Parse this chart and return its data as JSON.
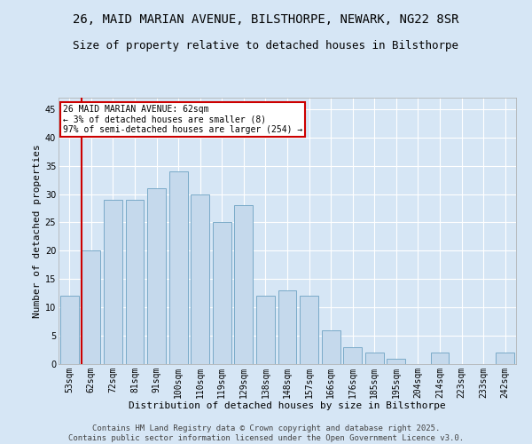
{
  "title1": "26, MAID MARIAN AVENUE, BILSTHORPE, NEWARK, NG22 8SR",
  "title2": "Size of property relative to detached houses in Bilsthorpe",
  "xlabel": "Distribution of detached houses by size in Bilsthorpe",
  "ylabel": "Number of detached properties",
  "categories": [
    "53sqm",
    "62sqm",
    "72sqm",
    "81sqm",
    "91sqm",
    "100sqm",
    "110sqm",
    "119sqm",
    "129sqm",
    "138sqm",
    "148sqm",
    "157sqm",
    "166sqm",
    "176sqm",
    "185sqm",
    "195sqm",
    "204sqm",
    "214sqm",
    "223sqm",
    "233sqm",
    "242sqm"
  ],
  "values": [
    12,
    20,
    29,
    29,
    31,
    34,
    30,
    25,
    28,
    12,
    13,
    12,
    6,
    3,
    2,
    1,
    0,
    2,
    0,
    0,
    2
  ],
  "bar_color": "#c5d9ec",
  "bar_edge_color": "#7aaac8",
  "vline_color": "#cc0000",
  "annotation_text": "26 MAID MARIAN AVENUE: 62sqm\n← 3% of detached houses are smaller (8)\n97% of semi-detached houses are larger (254) →",
  "annotation_box_color": "#ffffff",
  "annotation_box_edge": "#cc0000",
  "ylim": [
    0,
    47
  ],
  "yticks": [
    0,
    5,
    10,
    15,
    20,
    25,
    30,
    35,
    40,
    45
  ],
  "bg_color": "#d6e6f5",
  "plot_bg_color": "#d6e6f5",
  "footer_text": "Contains HM Land Registry data © Crown copyright and database right 2025.\nContains public sector information licensed under the Open Government Licence v3.0.",
  "title_fontsize": 10,
  "subtitle_fontsize": 9,
  "axis_label_fontsize": 8,
  "tick_fontsize": 7,
  "annotation_fontsize": 7,
  "footer_fontsize": 6.5
}
